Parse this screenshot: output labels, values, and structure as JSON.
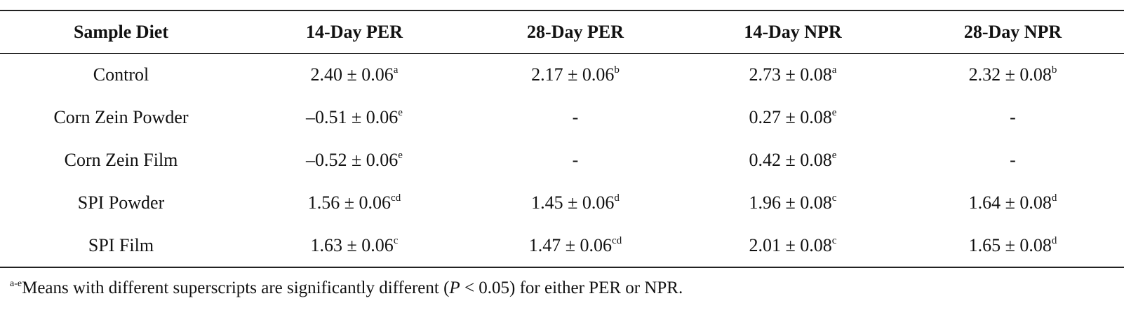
{
  "table": {
    "headers": [
      "Sample Diet",
      "14-Day PER",
      "28-Day PER",
      "14-Day NPR",
      "28-Day NPR"
    ],
    "rows": [
      {
        "diet": "Control",
        "cells": [
          {
            "value": "2.40 ± 0.06",
            "sup": "a"
          },
          {
            "value": "2.17 ± 0.06",
            "sup": "b"
          },
          {
            "value": "2.73 ± 0.08",
            "sup": "a"
          },
          {
            "value": "2.32 ± 0.08",
            "sup": "b"
          }
        ]
      },
      {
        "diet": "Corn Zein Powder",
        "cells": [
          {
            "value": "–0.51 ± 0.06",
            "sup": "e"
          },
          {
            "value": "-",
            "sup": ""
          },
          {
            "value": "0.27 ± 0.08",
            "sup": "e"
          },
          {
            "value": "-",
            "sup": ""
          }
        ]
      },
      {
        "diet": "Corn Zein Film",
        "cells": [
          {
            "value": "–0.52 ± 0.06",
            "sup": "e"
          },
          {
            "value": "-",
            "sup": ""
          },
          {
            "value": "0.42 ± 0.08",
            "sup": "e"
          },
          {
            "value": "-",
            "sup": ""
          }
        ]
      },
      {
        "diet": "SPI Powder",
        "cells": [
          {
            "value": "1.56 ± 0.06",
            "sup": "cd"
          },
          {
            "value": "1.45 ± 0.06",
            "sup": "d"
          },
          {
            "value": "1.96 ± 0.08",
            "sup": "c"
          },
          {
            "value": "1.64 ± 0.08",
            "sup": "d"
          }
        ]
      },
      {
        "diet": "SPI Film",
        "cells": [
          {
            "value": "1.63 ± 0.06",
            "sup": "c"
          },
          {
            "value": "1.47 ± 0.06",
            "sup": "cd"
          },
          {
            "value": "2.01 ± 0.08",
            "sup": "c"
          },
          {
            "value": "1.65 ± 0.08",
            "sup": "d"
          }
        ]
      }
    ]
  },
  "footnote": {
    "sup": "a-e",
    "text_before": "Means with different superscripts are significantly different (",
    "italic": "P",
    "text_after": " < 0.05) for either PER or NPR."
  }
}
